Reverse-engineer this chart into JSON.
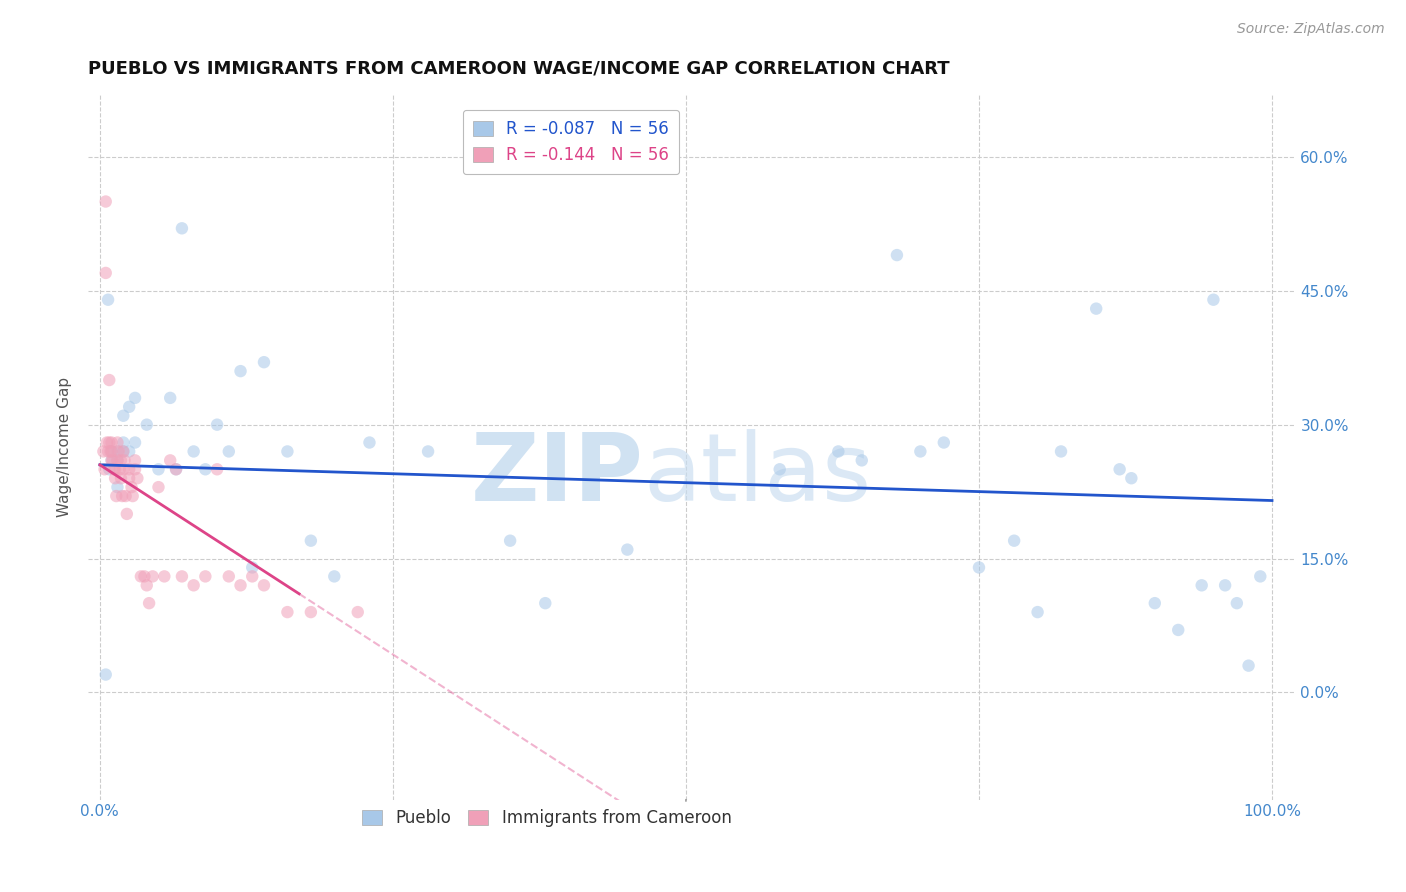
{
  "title": "PUEBLO VS IMMIGRANTS FROM CAMEROON WAGE/INCOME GAP CORRELATION CHART",
  "source": "Source: ZipAtlas.com",
  "ylabel": "Wage/Income Gap",
  "right_yticks": [
    0.0,
    0.15,
    0.3,
    0.45,
    0.6
  ],
  "right_yticklabels": [
    "0.0%",
    "15.0%",
    "30.0%",
    "45.0%",
    "60.0%"
  ],
  "xtick_pos": [
    0.0,
    0.25,
    0.5,
    0.75,
    1.0
  ],
  "xticklabels": [
    "0.0%",
    "",
    "",
    "",
    "100.0%"
  ],
  "xlim": [
    -0.01,
    1.02
  ],
  "ylim": [
    -0.12,
    0.67
  ],
  "legend_r_blue": "R = -0.087",
  "legend_n_blue": "N = 56",
  "legend_r_pink": "R = -0.144",
  "legend_n_pink": "N = 56",
  "watermark_zip": "ZIP",
  "watermark_atlas": "atlas",
  "blue_color": "#a8c8e8",
  "pink_color": "#f0a0b8",
  "trendline_blue_color": "#2255cc",
  "trendline_pink_color": "#dd4488",
  "background_color": "#ffffff",
  "grid_color": "#cccccc",
  "title_fontsize": 13,
  "source_fontsize": 10,
  "axis_label_fontsize": 11,
  "tick_fontsize": 11,
  "marker_size": 80,
  "marker_alpha": 0.55,
  "pueblo_x": [
    0.005,
    0.007,
    0.008,
    0.01,
    0.01,
    0.015,
    0.015,
    0.015,
    0.02,
    0.02,
    0.02,
    0.025,
    0.025,
    0.03,
    0.03,
    0.04,
    0.05,
    0.06,
    0.065,
    0.07,
    0.08,
    0.09,
    0.1,
    0.11,
    0.12,
    0.13,
    0.14,
    0.16,
    0.18,
    0.2,
    0.23,
    0.28,
    0.35,
    0.38,
    0.45,
    0.58,
    0.63,
    0.65,
    0.68,
    0.7,
    0.72,
    0.75,
    0.78,
    0.8,
    0.82,
    0.85,
    0.87,
    0.88,
    0.9,
    0.92,
    0.94,
    0.95,
    0.96,
    0.97,
    0.98,
    0.99
  ],
  "pueblo_y": [
    0.02,
    0.44,
    0.25,
    0.27,
    0.26,
    0.27,
    0.26,
    0.23,
    0.27,
    0.28,
    0.31,
    0.27,
    0.32,
    0.28,
    0.33,
    0.3,
    0.25,
    0.33,
    0.25,
    0.52,
    0.27,
    0.25,
    0.3,
    0.27,
    0.36,
    0.14,
    0.37,
    0.27,
    0.17,
    0.13,
    0.28,
    0.27,
    0.17,
    0.1,
    0.16,
    0.25,
    0.27,
    0.26,
    0.49,
    0.27,
    0.28,
    0.14,
    0.17,
    0.09,
    0.27,
    0.43,
    0.25,
    0.24,
    0.1,
    0.07,
    0.12,
    0.44,
    0.12,
    0.1,
    0.03,
    0.13
  ],
  "cameroon_x": [
    0.003,
    0.004,
    0.005,
    0.005,
    0.006,
    0.007,
    0.008,
    0.008,
    0.009,
    0.01,
    0.01,
    0.01,
    0.011,
    0.012,
    0.013,
    0.013,
    0.014,
    0.015,
    0.015,
    0.016,
    0.017,
    0.018,
    0.018,
    0.019,
    0.02,
    0.02,
    0.021,
    0.022,
    0.023,
    0.025,
    0.025,
    0.027,
    0.028,
    0.03,
    0.03,
    0.032,
    0.035,
    0.038,
    0.04,
    0.042,
    0.045,
    0.05,
    0.055,
    0.06,
    0.065,
    0.07,
    0.08,
    0.09,
    0.1,
    0.11,
    0.12,
    0.13,
    0.14,
    0.16,
    0.18,
    0.22
  ],
  "cameroon_y": [
    0.27,
    0.25,
    0.55,
    0.47,
    0.28,
    0.27,
    0.35,
    0.28,
    0.27,
    0.28,
    0.27,
    0.26,
    0.26,
    0.25,
    0.25,
    0.24,
    0.22,
    0.28,
    0.26,
    0.27,
    0.25,
    0.26,
    0.24,
    0.22,
    0.27,
    0.25,
    0.26,
    0.22,
    0.2,
    0.25,
    0.24,
    0.23,
    0.22,
    0.26,
    0.25,
    0.24,
    0.13,
    0.13,
    0.12,
    0.1,
    0.13,
    0.23,
    0.13,
    0.26,
    0.25,
    0.13,
    0.12,
    0.13,
    0.25,
    0.13,
    0.12,
    0.13,
    0.12,
    0.09,
    0.09,
    0.09
  ]
}
